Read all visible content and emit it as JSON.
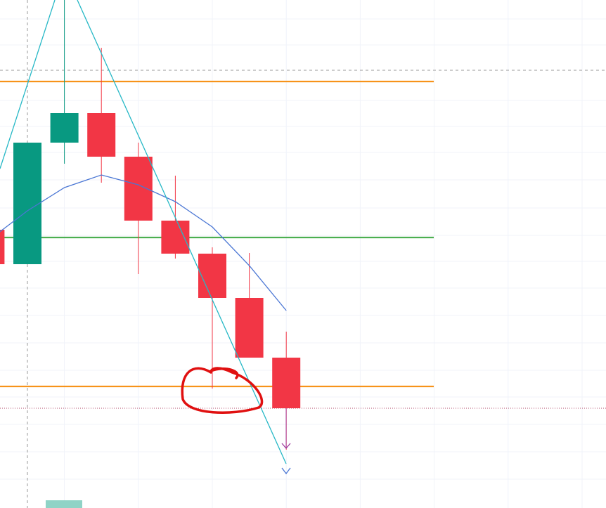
{
  "chart_data": {
    "type": "candlestick",
    "categories": [
      null,
      null,
      null,
      null,
      null,
      null,
      null,
      null,
      null
    ],
    "open": [
      396,
      347,
      520,
      562,
      500,
      409,
      362,
      299,
      214
    ],
    "high": [
      396,
      520,
      723,
      655,
      520,
      473,
      371,
      363,
      251
    ],
    "low": [
      347,
      347,
      490,
      463,
      333,
      355,
      170,
      214,
      83
    ],
    "close": [
      347,
      520,
      562,
      500,
      409,
      362,
      299,
      214,
      142
    ],
    "up_color": "#089981",
    "down_color": "#f23645",
    "ma": {
      "color": "#4a76d4",
      "values": [
        383,
        423,
        456,
        474,
        460,
        436,
        400,
        345,
        281
      ]
    },
    "levels": [
      {
        "value": 607,
        "color": "#f7931a"
      },
      {
        "value": 385,
        "color": "#4caf50"
      },
      {
        "value": 173,
        "color": "#f7931a"
      }
    ],
    "ylim": [
      0,
      723
    ],
    "yticks": [
      696,
      659,
      580,
      543,
      506,
      467,
      427,
      388,
      351,
      313,
      274,
      235,
      196,
      158,
      119,
      80,
      41
    ],
    "grid": true
  }
}
